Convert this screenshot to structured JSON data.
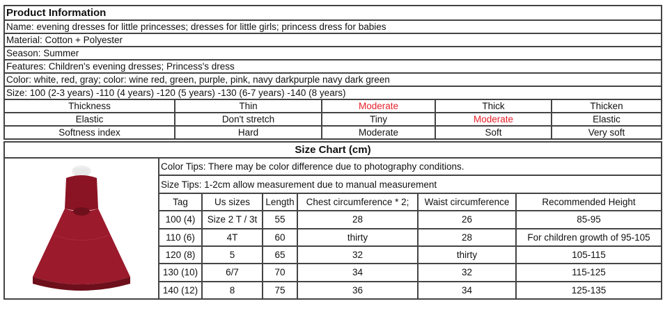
{
  "product": {
    "title": "Product Information",
    "lines": [
      "Name: evening dresses for little princesses; dresses for little girls; princess dress for babies",
      "Material: Cotton + Polyester",
      "Season: Summer",
      "Features:  Children's evening dresses; Princess's dress",
      "Color: white, red, gray; color: wine red, green, purple, pink, navy darkpurple navy dark green",
      "Size: 100 (2-3 years) -110 (4 years) -120 (5 years) -130 (6-7 years) -140 (8 years)"
    ],
    "properties": [
      {
        "label": "Thickness",
        "options": [
          "Thin",
          "Moderate",
          "Thick",
          "Thicken"
        ],
        "selected": 1
      },
      {
        "label": "Elastic",
        "options": [
          "Don't stretch",
          "Tiny",
          "Moderate",
          "Elastic"
        ],
        "selected": 2
      },
      {
        "label": "Softness index",
        "options": [
          "Hard",
          "Moderate",
          "Soft",
          "Very soft"
        ],
        "selected": null
      }
    ],
    "highlight_color": "#e8202a"
  },
  "size_chart": {
    "title": "Size Chart (cm)",
    "color_tip": "Color Tips: There may be color difference due to photography conditions.",
    "size_tip": "Size Tips: 1-2cm allow measurement due to manual measurement",
    "headers": [
      "Tag",
      "Us sizes",
      "Length",
      "Chest circumference * 2;",
      "Waist circumference",
      "Recommended Height"
    ],
    "rows": [
      [
        "100 (4)",
        "Size 2 T / 3t",
        "55",
        "28",
        "26",
        "85-95"
      ],
      [
        "110 (6)",
        "4T",
        "60",
        "thirty",
        "28",
        "For children growth of 95-105"
      ],
      [
        "120 (8)",
        "5",
        "65",
        "32",
        "thirty",
        "105-115"
      ],
      [
        "130 (10)",
        "6/7",
        "70",
        "34",
        "32",
        "115-125"
      ],
      [
        "140 (12)",
        "8",
        "75",
        "36",
        "34",
        "125-135"
      ]
    ],
    "image": "wine-red-princess-dress-photo",
    "dress_color": "#8b1424"
  }
}
